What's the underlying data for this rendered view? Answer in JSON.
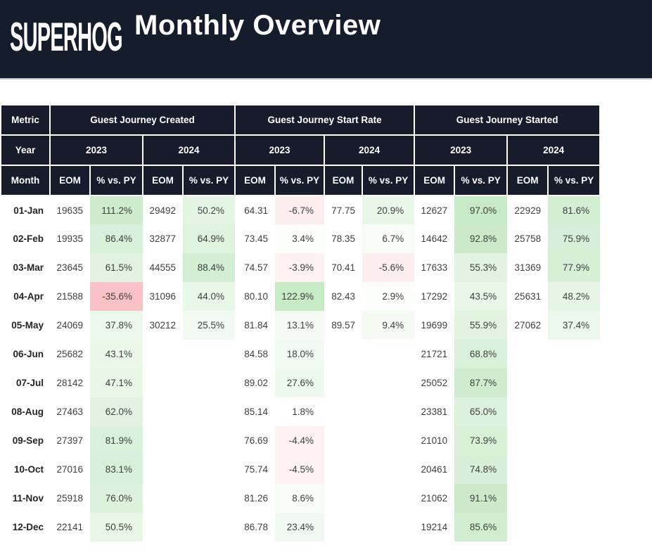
{
  "banner": {
    "logo_text": "SUPERHOG",
    "title": "Monthly Overview",
    "bg_color": "#151c2b"
  },
  "colors": {
    "header_bg": "#161c2b",
    "header_text": "#ffffff",
    "positive_max_green": "#c7ebc5",
    "negative_red": "#f9c2c4"
  },
  "table": {
    "header": {
      "metric_label": "Metric",
      "year_label": "Year",
      "month_label": "Month",
      "groups": [
        "Guest Journey Created",
        "Guest Journey Start Rate",
        "Guest Journey Started"
      ],
      "years": [
        "2023",
        "2024"
      ],
      "eom_label": "EOM",
      "pct_label": "% vs. PY"
    },
    "rows": [
      {
        "month": "01-Jan",
        "cells": [
          {
            "v": "19635"
          },
          {
            "v": "111.2%",
            "bg": "#cdeccd"
          },
          {
            "v": "29492"
          },
          {
            "v": "50.2%",
            "bg": "#e5f5e4"
          },
          {
            "v": "64.31"
          },
          {
            "v": "-6.7%",
            "bg": "#fdeeee"
          },
          {
            "v": "77.75"
          },
          {
            "v": "20.9%",
            "bg": "#e9f7e8"
          },
          {
            "v": "12627"
          },
          {
            "v": "97.0%",
            "bg": "#c8e9c6"
          },
          {
            "v": "22929"
          },
          {
            "v": "81.6%",
            "bg": "#d4eed3"
          }
        ]
      },
      {
        "month": "02-Feb",
        "cells": [
          {
            "v": "19935"
          },
          {
            "v": "86.4%",
            "bg": "#d8f0d7"
          },
          {
            "v": "32877"
          },
          {
            "v": "64.9%",
            "bg": "#def3dd"
          },
          {
            "v": "73.45"
          },
          {
            "v": "3.4%",
            "bg": "#fcfefc"
          },
          {
            "v": "78.35"
          },
          {
            "v": "6.7%",
            "bg": "#f7fcf6"
          },
          {
            "v": "14642"
          },
          {
            "v": "92.8%",
            "bg": "#cbeac9"
          },
          {
            "v": "25758"
          },
          {
            "v": "75.9%",
            "bg": "#d7efd6"
          }
        ]
      },
      {
        "month": "03-Mar",
        "cells": [
          {
            "v": "23645"
          },
          {
            "v": "61.5%",
            "bg": "#e2f4e1"
          },
          {
            "v": "44555"
          },
          {
            "v": "88.4%",
            "bg": "#d3eed2"
          },
          {
            "v": "74.57"
          },
          {
            "v": "-3.9%",
            "bg": "#fdf1f1"
          },
          {
            "v": "70.41"
          },
          {
            "v": "-5.6%",
            "bg": "#fdeeee"
          },
          {
            "v": "17633"
          },
          {
            "v": "55.3%",
            "bg": "#e2f4e1"
          },
          {
            "v": "31369"
          },
          {
            "v": "77.9%",
            "bg": "#d6efd5"
          }
        ]
      },
      {
        "month": "04-Apr",
        "cells": [
          {
            "v": "21588"
          },
          {
            "v": "-35.6%",
            "bg": "#f9c2c4"
          },
          {
            "v": "31096"
          },
          {
            "v": "44.0%",
            "bg": "#e9f7e8"
          },
          {
            "v": "80.10"
          },
          {
            "v": "122.9%",
            "bg": "#c7ebc5"
          },
          {
            "v": "82.43"
          },
          {
            "v": "2.9%",
            "bg": "#fcfefc"
          },
          {
            "v": "17292"
          },
          {
            "v": "43.5%",
            "bg": "#e9f7e8"
          },
          {
            "v": "25631"
          },
          {
            "v": "48.2%",
            "bg": "#e6f6e5"
          }
        ]
      },
      {
        "month": "05-May",
        "cells": [
          {
            "v": "24069"
          },
          {
            "v": "37.8%",
            "bg": "#ecf8eb"
          },
          {
            "v": "30212"
          },
          {
            "v": "25.5%",
            "bg": "#f1faf0"
          },
          {
            "v": "81.84"
          },
          {
            "v": "13.1%",
            "bg": "#f4fbf3"
          },
          {
            "v": "89.57"
          },
          {
            "v": "9.4%",
            "bg": "#f4fbf3"
          },
          {
            "v": "19699"
          },
          {
            "v": "55.9%",
            "bg": "#e1f4e0"
          },
          {
            "v": "27062"
          },
          {
            "v": "37.4%",
            "bg": "#ecf8eb"
          }
        ]
      },
      {
        "month": "06-Jun",
        "cells": [
          {
            "v": "25682"
          },
          {
            "v": "43.1%",
            "bg": "#eaf7e9"
          },
          {
            "v": ""
          },
          {
            "v": ""
          },
          {
            "v": "84.58"
          },
          {
            "v": "18.0%",
            "bg": "#f1faf0"
          },
          {
            "v": ""
          },
          {
            "v": ""
          },
          {
            "v": "21721"
          },
          {
            "v": "68.8%",
            "bg": "#daf1d9"
          },
          {
            "v": ""
          },
          {
            "v": ""
          }
        ]
      },
      {
        "month": "07-Jul",
        "cells": [
          {
            "v": "28142"
          },
          {
            "v": "47.1%",
            "bg": "#e9f7e8"
          },
          {
            "v": ""
          },
          {
            "v": ""
          },
          {
            "v": "89.02"
          },
          {
            "v": "27.6%",
            "bg": "#eef9ed"
          },
          {
            "v": ""
          },
          {
            "v": ""
          },
          {
            "v": "25052"
          },
          {
            "v": "87.7%",
            "bg": "#cfecce"
          },
          {
            "v": ""
          },
          {
            "v": ""
          }
        ]
      },
      {
        "month": "08-Aug",
        "cells": [
          {
            "v": "27463"
          },
          {
            "v": "62.0%",
            "bg": "#e2f4e1"
          },
          {
            "v": ""
          },
          {
            "v": ""
          },
          {
            "v": "85.14"
          },
          {
            "v": "1.8%",
            "bg": "#fefffe"
          },
          {
            "v": ""
          },
          {
            "v": ""
          },
          {
            "v": "23381"
          },
          {
            "v": "65.0%",
            "bg": "#ddf2dc"
          },
          {
            "v": ""
          },
          {
            "v": ""
          }
        ]
      },
      {
        "month": "09-Sep",
        "cells": [
          {
            "v": "27397"
          },
          {
            "v": "81.9%",
            "bg": "#d9f1d8"
          },
          {
            "v": ""
          },
          {
            "v": ""
          },
          {
            "v": "76.69"
          },
          {
            "v": "-4.4%",
            "bg": "#fdf1f1"
          },
          {
            "v": ""
          },
          {
            "v": ""
          },
          {
            "v": "21010"
          },
          {
            "v": "73.9%",
            "bg": "#d7f0d6"
          },
          {
            "v": ""
          },
          {
            "v": ""
          }
        ]
      },
      {
        "month": "10-Oct",
        "cells": [
          {
            "v": "27016"
          },
          {
            "v": "83.1%",
            "bg": "#d9f0d8"
          },
          {
            "v": ""
          },
          {
            "v": ""
          },
          {
            "v": "75.74"
          },
          {
            "v": "-4.5%",
            "bg": "#fdf1f1"
          },
          {
            "v": ""
          },
          {
            "v": ""
          },
          {
            "v": "20461"
          },
          {
            "v": "74.8%",
            "bg": "#d7efd6"
          },
          {
            "v": ""
          },
          {
            "v": ""
          }
        ]
      },
      {
        "month": "11-Nov",
        "cells": [
          {
            "v": "25918"
          },
          {
            "v": "76.0%",
            "bg": "#dcf2db"
          },
          {
            "v": ""
          },
          {
            "v": ""
          },
          {
            "v": "81.26"
          },
          {
            "v": "8.6%",
            "bg": "#f7fcf6"
          },
          {
            "v": ""
          },
          {
            "v": ""
          },
          {
            "v": "21062"
          },
          {
            "v": "91.1%",
            "bg": "#cceaca"
          },
          {
            "v": ""
          },
          {
            "v": ""
          }
        ]
      },
      {
        "month": "12-Dec",
        "cells": [
          {
            "v": "22141"
          },
          {
            "v": "50.5%",
            "bg": "#e7f6e6"
          },
          {
            "v": ""
          },
          {
            "v": ""
          },
          {
            "v": "86.78"
          },
          {
            "v": "23.4%",
            "bg": "#f0f9ef"
          },
          {
            "v": ""
          },
          {
            "v": ""
          },
          {
            "v": "19214"
          },
          {
            "v": "85.6%",
            "bg": "#d0edcf"
          },
          {
            "v": ""
          },
          {
            "v": ""
          }
        ]
      }
    ]
  }
}
